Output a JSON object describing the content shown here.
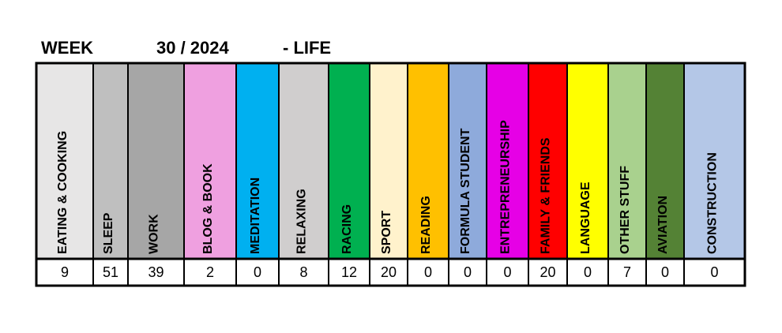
{
  "header": {
    "week_label": "WEEK",
    "week": "30 / 2024",
    "suffix": "- LIFE"
  },
  "table": {
    "columns": [
      {
        "label": "EATING & COOKING",
        "color": "#e7e6e6",
        "value": 9
      },
      {
        "label": "SLEEP",
        "color": "#bfbfbf",
        "value": 51
      },
      {
        "label": "WORK",
        "color": "#a6a6a6",
        "value": 39
      },
      {
        "label": "BLOG & BOOK",
        "color": "#efa0e0",
        "value": 2
      },
      {
        "label": "MEDITATION",
        "color": "#00b0f0",
        "value": 0
      },
      {
        "label": "RELAXING",
        "color": "#d0cece",
        "value": 8
      },
      {
        "label": "RACING",
        "color": "#00b050",
        "value": 12
      },
      {
        "label": "SPORT",
        "color": "#fff2cc",
        "value": 20
      },
      {
        "label": "READING",
        "color": "#ffc000",
        "value": 0
      },
      {
        "label": "FORMULA STUDENT",
        "color": "#8eaadb",
        "value": 0
      },
      {
        "label": "ENTREPRENEURSHIP",
        "color": "#e600e6",
        "value": 0
      },
      {
        "label": "FAMILY & FRIENDS",
        "color": "#ff0000",
        "value": 20
      },
      {
        "label": "LANGUAGE",
        "color": "#ffff00",
        "value": 0
      },
      {
        "label": "OTHER STUFF",
        "color": "#a9d18e",
        "value": 7
      },
      {
        "label": "AVIATION",
        "color": "#548235",
        "value": 0
      },
      {
        "label": "CONSTRUCTION",
        "color": "#b4c7e7",
        "value": 0
      }
    ]
  }
}
